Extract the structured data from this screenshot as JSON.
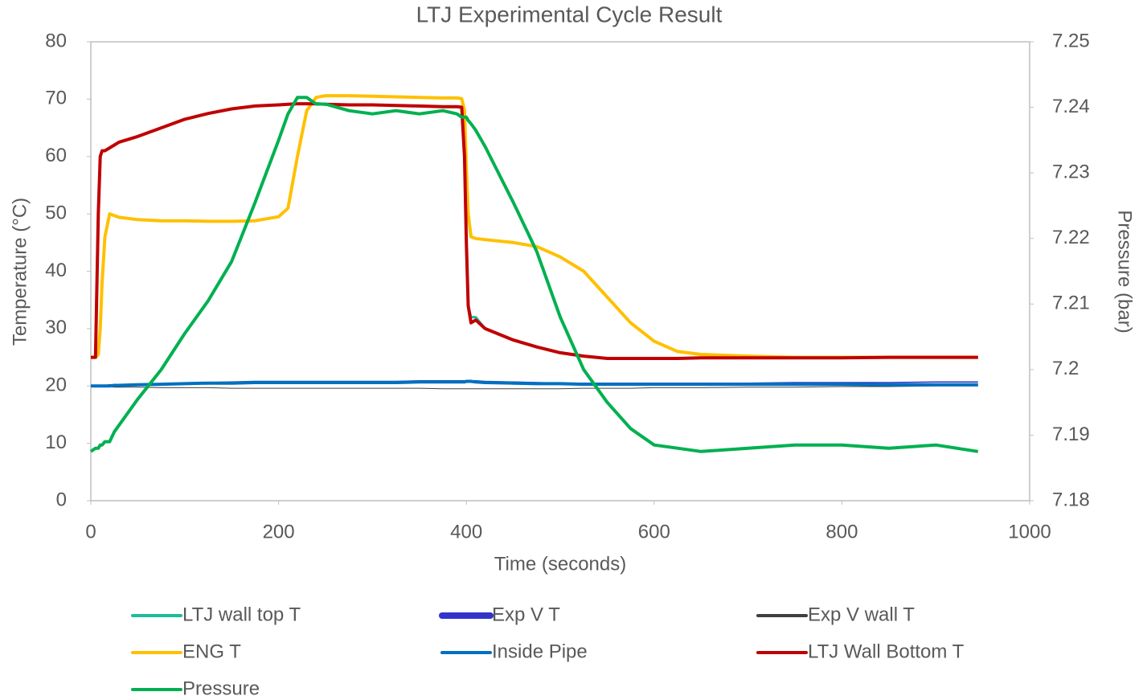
{
  "chart_data": {
    "type": "line",
    "title": "LTJ Experimental Cycle Result",
    "x_label": "Time (seconds)",
    "y_label": "Temperature (°C)",
    "y2_label": "Pressure (bar)",
    "xlim": [
      0,
      1000
    ],
    "xticks": [
      0,
      200,
      400,
      600,
      800,
      1000
    ],
    "ylim": [
      0,
      80
    ],
    "yticks": [
      0,
      10,
      20,
      30,
      40,
      50,
      60,
      70,
      80
    ],
    "y2lim": [
      7.18,
      7.25
    ],
    "y2ticks": [
      7.18,
      7.19,
      7.2,
      7.21,
      7.22,
      7.23,
      7.24,
      7.25
    ],
    "grid": false,
    "legend": "bottom",
    "x": [
      0,
      5,
      8,
      10,
      12,
      15,
      20,
      25,
      30,
      50,
      75,
      100,
      125,
      150,
      175,
      200,
      210,
      220,
      230,
      240,
      250,
      275,
      300,
      325,
      350,
      375,
      390,
      395,
      398,
      400,
      402,
      405,
      410,
      420,
      450,
      475,
      500,
      525,
      550,
      575,
      600,
      625,
      650,
      700,
      750,
      800,
      850,
      900,
      945
    ],
    "series": [
      {
        "name": "LTJ wall top T",
        "color": "#1abc9c",
        "width": 3,
        "values": [
          25,
          25,
          50,
          60,
          61,
          61,
          61.5,
          62,
          62.5,
          63.5,
          65,
          66.5,
          67.5,
          68.3,
          68.8,
          69,
          69.1,
          69.2,
          69.2,
          69.2,
          69.1,
          69,
          69,
          68.9,
          68.8,
          68.7,
          68.7,
          68.6,
          60,
          45,
          34,
          32,
          32,
          30,
          28,
          26.8,
          25.8,
          25.2,
          24.8,
          24.8,
          24.8,
          24.8,
          24.9,
          24.9,
          24.9,
          24.9,
          25,
          25,
          25
        ]
      },
      {
        "name": "Exp V T",
        "color": "#3333cc",
        "width": 1.5,
        "values": [
          20.1,
          20.1,
          20.1,
          20.1,
          20.1,
          20.1,
          20.2,
          20.2,
          20.2,
          20.3,
          20.4,
          20.5,
          20.6,
          20.7,
          20.8,
          20.8,
          20.8,
          20.8,
          20.8,
          20.8,
          20.8,
          20.8,
          20.8,
          20.8,
          20.9,
          20.9,
          20.9,
          20.9,
          20.9,
          20.9,
          20.9,
          20.9,
          20.9,
          20.8,
          20.7,
          20.6,
          20.5,
          20.5,
          20.5,
          20.5,
          20.5,
          20.5,
          20.5,
          20.5,
          20.6,
          20.6,
          20.6,
          20.7,
          20.7
        ]
      },
      {
        "name": "Exp V wall T",
        "color": "#404040",
        "width": 1,
        "values": [
          19.9,
          19.9,
          19.9,
          19.9,
          19.9,
          19.9,
          19.9,
          19.8,
          19.8,
          19.8,
          19.7,
          19.7,
          19.7,
          19.6,
          19.6,
          19.6,
          19.6,
          19.6,
          19.6,
          19.6,
          19.6,
          19.6,
          19.6,
          19.6,
          19.6,
          19.5,
          19.5,
          19.5,
          19.5,
          19.5,
          19.5,
          19.5,
          19.5,
          19.5,
          19.5,
          19.5,
          19.5,
          19.6,
          19.6,
          19.6,
          19.7,
          19.7,
          19.7,
          19.8,
          19.8,
          19.9,
          19.9,
          20,
          20
        ]
      },
      {
        "name": "ENG T",
        "color": "#ffc000",
        "width": 4,
        "values": [
          25,
          25,
          25.5,
          30,
          38,
          46,
          50,
          49.7,
          49.4,
          49,
          48.8,
          48.8,
          48.7,
          48.7,
          48.8,
          49.5,
          51,
          60,
          68,
          70.3,
          70.6,
          70.6,
          70.5,
          70.4,
          70.3,
          70.2,
          70.2,
          70.1,
          68,
          58,
          50,
          46,
          45.7,
          45.5,
          45,
          44.3,
          42.5,
          40,
          35.5,
          31,
          27.8,
          26,
          25.5,
          25.2,
          25,
          25,
          25,
          25,
          25
        ]
      },
      {
        "name": "Inside Pipe",
        "color": "#0070c0",
        "width": 4,
        "values": [
          20,
          20,
          20,
          20,
          20,
          20,
          20,
          20.1,
          20.1,
          20.2,
          20.3,
          20.4,
          20.5,
          20.5,
          20.6,
          20.6,
          20.6,
          20.6,
          20.6,
          20.6,
          20.6,
          20.6,
          20.6,
          20.6,
          20.7,
          20.7,
          20.7,
          20.7,
          20.7,
          20.8,
          20.8,
          20.8,
          20.7,
          20.6,
          20.5,
          20.4,
          20.4,
          20.3,
          20.3,
          20.3,
          20.3,
          20.3,
          20.3,
          20.3,
          20.3,
          20.3,
          20.2,
          20.2,
          20.2
        ]
      },
      {
        "name": "LTJ Wall Bottom T",
        "color": "#c00000",
        "width": 4,
        "values": [
          25,
          25,
          50,
          60,
          61,
          61,
          61.5,
          62,
          62.5,
          63.5,
          65,
          66.5,
          67.5,
          68.3,
          68.8,
          69,
          69.1,
          69.2,
          69.2,
          69.2,
          69.1,
          69,
          69,
          68.9,
          68.8,
          68.7,
          68.7,
          68.6,
          60,
          45,
          34,
          31,
          31.5,
          30,
          28,
          26.8,
          25.8,
          25.2,
          24.8,
          24.8,
          24.8,
          24.8,
          24.9,
          24.9,
          24.9,
          24.9,
          25,
          25,
          25
        ]
      },
      {
        "name": "Pressure",
        "color": "#00b050",
        "width": 4,
        "axis": "y2",
        "values": [
          7.1875,
          7.188,
          7.188,
          7.1885,
          7.1885,
          7.189,
          7.189,
          7.1905,
          7.1915,
          7.1955,
          7.2,
          7.2055,
          7.2105,
          7.2165,
          7.2255,
          7.235,
          7.239,
          7.2415,
          7.2415,
          7.2405,
          7.2405,
          7.2395,
          7.239,
          7.2395,
          7.239,
          7.2395,
          7.239,
          7.2385,
          7.2385,
          7.2385,
          7.238,
          7.2375,
          7.2365,
          7.234,
          7.2255,
          7.218,
          7.208,
          7.2,
          7.195,
          7.191,
          7.1885,
          7.188,
          7.1875,
          7.188,
          7.1885,
          7.1885,
          7.188,
          7.1885,
          7.1875
        ]
      }
    ]
  }
}
